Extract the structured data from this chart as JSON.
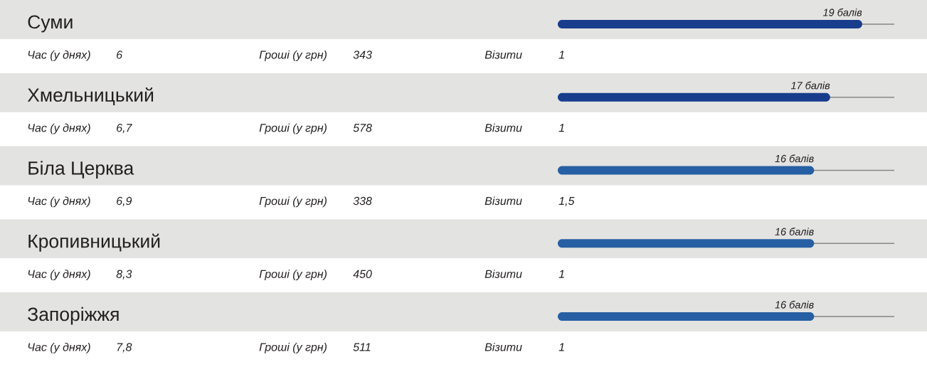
{
  "chart_data": [
    {
      "type": "bar",
      "orientation": "horizontal",
      "categories": [
        "Суми",
        "Хмельницький",
        "Біла Церква",
        "Кропивницький",
        "Запоріжжя"
      ],
      "values": [
        19,
        17,
        16,
        16,
        16
      ],
      "colors": [
        "#173d8c",
        "#173d8c",
        "#265fa3",
        "#265fa3",
        "#265fa3"
      ],
      "value_labels": [
        "19 балів",
        "17 балів",
        "16 балів",
        "16 балів",
        "16 балів"
      ],
      "xlim": [
        0,
        21
      ],
      "grid": "y",
      "tick_labels": "y"
    },
    {
      "type": "other",
      "annotations": [
        "Час (у днях)",
        "6",
        "Гроші (у грн)",
        "343",
        "Візити",
        "1",
        "Час (у днях)",
        "6,7",
        "Гроші (у грн)",
        "578",
        "Візити",
        "1",
        "Час (у днях)",
        "6,9",
        "Гроші (у грн)",
        "338",
        "Візити",
        "1,5",
        "Час (у днях)",
        "8,3",
        "Гроші (у грн)",
        "450",
        "Візити",
        "1",
        "Час (у днях)",
        "7,8",
        "Гроші (у грн)",
        "511",
        "Візити",
        "1"
      ]
    }
  ]
}
